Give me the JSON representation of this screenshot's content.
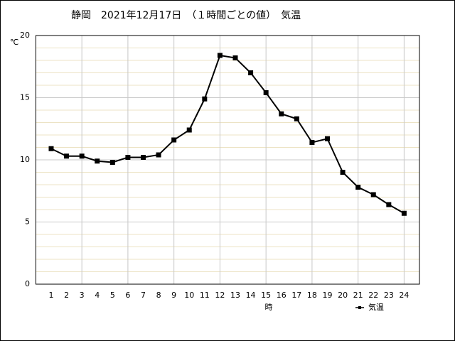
{
  "chart_data": {
    "type": "line",
    "title": "静岡　2021年12月17日　（１時間ごとの値）　気温",
    "y_unit": "℃",
    "x_label": "時",
    "x": [
      1,
      2,
      3,
      4,
      5,
      6,
      7,
      8,
      9,
      10,
      11,
      12,
      13,
      14,
      15,
      16,
      17,
      18,
      19,
      20,
      21,
      22,
      23,
      24
    ],
    "series": [
      {
        "name": "気温",
        "color": "#000000",
        "values": [
          10.9,
          10.3,
          10.3,
          9.9,
          9.8,
          10.2,
          10.2,
          10.4,
          11.6,
          12.4,
          14.9,
          18.4,
          18.2,
          17.0,
          15.4,
          13.7,
          13.3,
          11.4,
          11.7,
          9.0,
          7.8,
          7.2,
          6.4,
          5.7
        ]
      }
    ],
    "xlim": [
      0,
      25
    ],
    "xticks": [
      1,
      2,
      3,
      4,
      5,
      6,
      7,
      8,
      9,
      10,
      11,
      12,
      13,
      14,
      15,
      16,
      17,
      18,
      19,
      20,
      21,
      22,
      23,
      24
    ],
    "ylim": [
      0,
      20
    ],
    "yticks": [
      0,
      5,
      10,
      15,
      20
    ],
    "grid": true
  }
}
